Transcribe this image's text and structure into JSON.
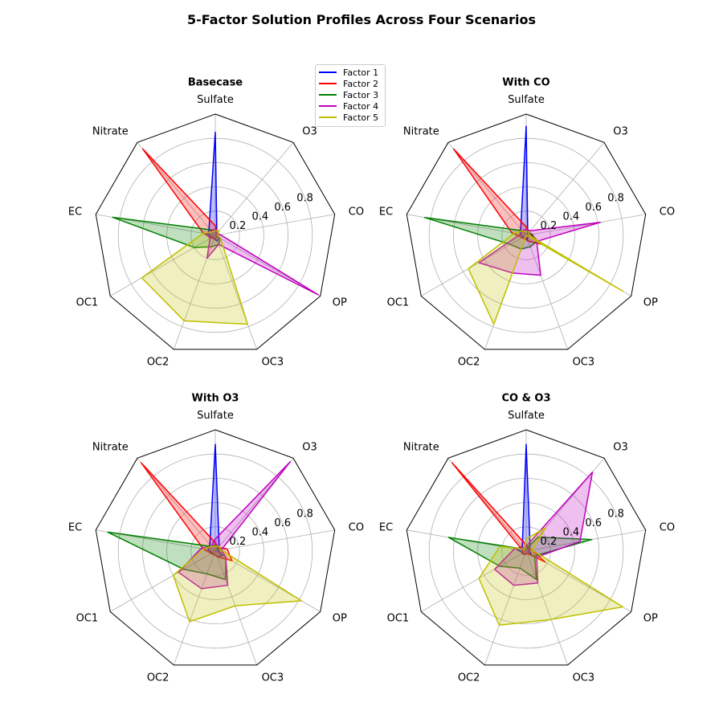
{
  "suptitle": "5-Factor Solution Profiles Across Four Scenarios",
  "legend": {
    "items": [
      {
        "label": "Factor 1",
        "color": "#0000ff"
      },
      {
        "label": "Factor 2",
        "color": "#ff0000"
      },
      {
        "label": "Factor 3",
        "color": "#008000"
      },
      {
        "label": "Factor 4",
        "color": "#bf00bf"
      },
      {
        "label": "Factor 5",
        "color": "#bfbf00"
      }
    ]
  },
  "chart_data": [
    {
      "type": "radar",
      "title": "Basecase",
      "axes": [
        "Sulfate",
        "O3",
        "CO",
        "OP",
        "OC3",
        "OC2",
        "OC1",
        "EC",
        "Nitrate"
      ],
      "rmax": 1.0,
      "rticks": [
        0.2,
        0.4,
        0.6,
        0.8
      ],
      "grid": true,
      "series": [
        {
          "name": "Factor 1",
          "values": [
            0.85,
            0.02,
            0.02,
            0.04,
            0.05,
            0.03,
            0.03,
            0.06,
            0.08
          ]
        },
        {
          "name": "Factor 2",
          "values": [
            0.08,
            0.02,
            0.02,
            0.02,
            0.02,
            0.03,
            0.04,
            0.1,
            0.93
          ]
        },
        {
          "name": "Factor 3",
          "values": [
            0.04,
            0.02,
            0.02,
            0.05,
            0.08,
            0.1,
            0.2,
            0.86,
            0.06
          ]
        },
        {
          "name": "Factor 4",
          "values": [
            0.05,
            0.02,
            0.04,
            0.98,
            0.08,
            0.2,
            0.05,
            0.08,
            0.05
          ]
        },
        {
          "name": "Factor 5",
          "values": [
            0.04,
            0.05,
            0.02,
            0.05,
            0.78,
            0.75,
            0.7,
            0.1,
            0.04
          ]
        }
      ]
    },
    {
      "type": "radar",
      "title": "With CO",
      "axes": [
        "Sulfate",
        "O3",
        "CO",
        "OP",
        "OC3",
        "OC2",
        "OC1",
        "EC",
        "Nitrate"
      ],
      "rmax": 1.0,
      "rticks": [
        0.2,
        0.4,
        0.6,
        0.8
      ],
      "grid": true,
      "series": [
        {
          "name": "Factor 1",
          "values": [
            0.9,
            0.02,
            0.02,
            0.02,
            0.03,
            0.03,
            0.03,
            0.05,
            0.07
          ]
        },
        {
          "name": "Factor 2",
          "values": [
            0.07,
            0.04,
            0.04,
            0.15,
            0.05,
            0.03,
            0.04,
            0.12,
            0.93
          ]
        },
        {
          "name": "Factor 3",
          "values": [
            0.03,
            0.03,
            0.05,
            0.1,
            0.1,
            0.12,
            0.15,
            0.85,
            0.05
          ]
        },
        {
          "name": "Factor 4",
          "values": [
            0.05,
            0.05,
            0.62,
            0.1,
            0.35,
            0.33,
            0.45,
            0.05,
            0.05
          ]
        },
        {
          "name": "Factor 5",
          "values": [
            0.03,
            0.04,
            0.02,
            0.92,
            0.0,
            0.78,
            0.55,
            0.1,
            0.05
          ]
        }
      ]
    },
    {
      "type": "radar",
      "title": "With O3",
      "axes": [
        "Sulfate",
        "O3",
        "CO",
        "OP",
        "OC3",
        "OC2",
        "OC1",
        "EC",
        "Nitrate"
      ],
      "rmax": 1.0,
      "rticks": [
        0.2,
        0.4,
        0.6,
        0.8
      ],
      "grid": true,
      "series": [
        {
          "name": "Factor 1",
          "values": [
            0.88,
            0.05,
            0.02,
            0.07,
            0.05,
            0.03,
            0.03,
            0.06,
            0.07
          ]
        },
        {
          "name": "Factor 2",
          "values": [
            0.07,
            0.04,
            0.1,
            0.16,
            0.05,
            0.03,
            0.04,
            0.1,
            0.95
          ]
        },
        {
          "name": "Factor 3",
          "values": [
            0.05,
            0.03,
            0.05,
            0.1,
            0.25,
            0.2,
            0.3,
            0.9,
            0.05
          ]
        },
        {
          "name": "Factor 4",
          "values": [
            0.1,
            0.96,
            0.05,
            0.1,
            0.3,
            0.33,
            0.35,
            0.12,
            0.05
          ]
        },
        {
          "name": "Factor 5",
          "values": [
            0.04,
            0.05,
            0.05,
            0.82,
            0.48,
            0.62,
            0.4,
            0.1,
            0.05
          ]
        }
      ]
    },
    {
      "type": "radar",
      "title": "CO & O3",
      "axes": [
        "Sulfate",
        "O3",
        "CO",
        "OP",
        "OC3",
        "OC2",
        "OC1",
        "EC",
        "Nitrate"
      ],
      "rmax": 1.0,
      "rticks": [
        0.2,
        0.4,
        0.6,
        0.8
      ],
      "grid": true,
      "series": [
        {
          "name": "Factor 1",
          "values": [
            0.88,
            0.05,
            0.02,
            0.05,
            0.02,
            0.03,
            0.03,
            0.08,
            0.05
          ]
        },
        {
          "name": "Factor 2",
          "values": [
            0.05,
            0.03,
            0.05,
            0.18,
            0.02,
            0.03,
            0.04,
            0.03,
            0.95
          ]
        },
        {
          "name": "Factor 3",
          "values": [
            0.02,
            0.15,
            0.55,
            0.08,
            0.25,
            0.15,
            0.25,
            0.65,
            0.02
          ]
        },
        {
          "name": "Factor 4",
          "values": [
            0.04,
            0.85,
            0.45,
            0.1,
            0.28,
            0.3,
            0.3,
            0.1,
            0.03
          ]
        },
        {
          "name": "Factor 5",
          "values": [
            0.1,
            0.25,
            0.05,
            0.92,
            0.6,
            0.65,
            0.45,
            0.22,
            0.02
          ]
        }
      ]
    }
  ]
}
